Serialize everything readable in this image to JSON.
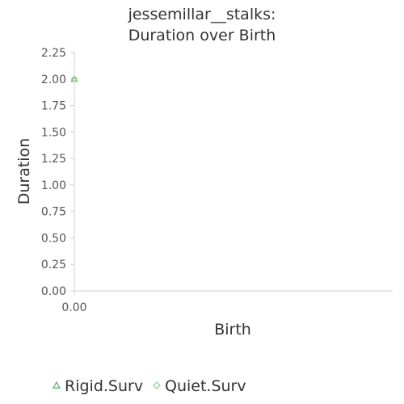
{
  "chart_data": {
    "type": "scatter",
    "title_lines": [
      "jessemillar__stalks:",
      "Duration over Birth"
    ],
    "xlabel": "Birth",
    "ylabel": "Duration",
    "x_ticks": [
      "0.00"
    ],
    "y_ticks": [
      "0.00",
      "0.25",
      "0.50",
      "0.75",
      "1.00",
      "1.25",
      "1.50",
      "1.75",
      "2.00",
      "2.25"
    ],
    "xlim": [
      0,
      1
    ],
    "ylim": [
      0,
      2.25
    ],
    "grid": false,
    "legend_position": "bottom",
    "series": [
      {
        "name": "Rigid.Surv",
        "marker": "triangle",
        "color": "#6ab36a",
        "points": [
          {
            "x": 0,
            "y": 2.0
          }
        ]
      },
      {
        "name": "Quiet.Surv",
        "marker": "diamond",
        "color": "#9fd49f",
        "points": [
          {
            "x": 0,
            "y": 2.0
          }
        ]
      }
    ]
  }
}
